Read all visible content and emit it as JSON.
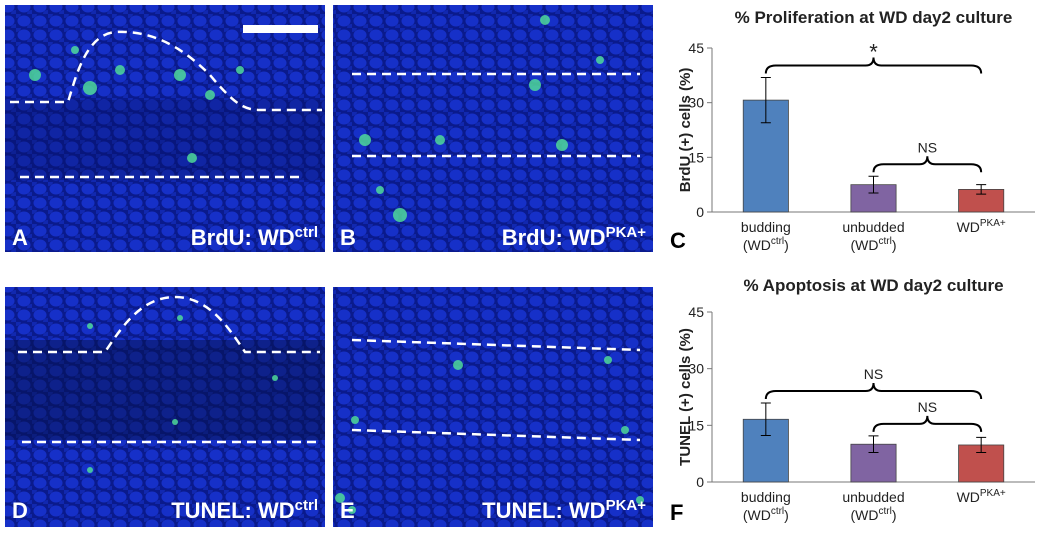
{
  "panels": [
    {
      "letter": "A",
      "label": "BrdU: WD",
      "sup": "ctrl"
    },
    {
      "letter": "B",
      "label": "BrdU: WD",
      "sup": "PKA+"
    },
    {
      "letter": "D",
      "label": "TUNEL: WD",
      "sup": "ctrl"
    },
    {
      "letter": "E",
      "label": "TUNEL: WD",
      "sup": "PKA+"
    }
  ],
  "chart_data": [
    {
      "type": "bar",
      "panel_letter": "C",
      "title": "% Proliferation at WD day2 culture",
      "y_label": "BrdU (+) cells (%)",
      "categories": [
        [
          "budding",
          "(WD",
          "ctrl",
          ")"
        ],
        [
          "unbudded",
          "(WD",
          "ctrl",
          ")"
        ],
        [
          "WD",
          "PKA+"
        ]
      ],
      "values": [
        30.7,
        7.5,
        6.2
      ],
      "errors": [
        6.2,
        2.3,
        1.3
      ],
      "colors": [
        "#4f81bd",
        "#8064a2",
        "#c0504d"
      ],
      "ylim": [
        0,
        45
      ],
      "yticks": [
        0,
        15,
        30,
        45
      ],
      "annotations": [
        {
          "text": "*",
          "pair": [
            0,
            2
          ]
        },
        {
          "text": "NS",
          "pair": [
            1,
            2
          ]
        }
      ]
    },
    {
      "type": "bar",
      "panel_letter": "F",
      "title": "% Apoptosis at WD day2 culture",
      "y_label": "TUNEL (+) cells (%)",
      "categories": [
        [
          "budding",
          "(WD",
          "ctrl",
          ")"
        ],
        [
          "unbudded",
          "(WD",
          "ctrl",
          ")"
        ],
        [
          "WD",
          "PKA+"
        ]
      ],
      "values": [
        16.6,
        10.0,
        9.8
      ],
      "errors": [
        4.3,
        2.2,
        2.0
      ],
      "colors": [
        "#4f81bd",
        "#8064a2",
        "#c0504d"
      ],
      "ylim": [
        0,
        45
      ],
      "yticks": [
        0,
        15,
        30,
        45
      ],
      "annotations": [
        {
          "text": "NS",
          "pair": [
            0,
            2
          ]
        },
        {
          "text": "NS",
          "pair": [
            1,
            2
          ]
        }
      ]
    }
  ]
}
